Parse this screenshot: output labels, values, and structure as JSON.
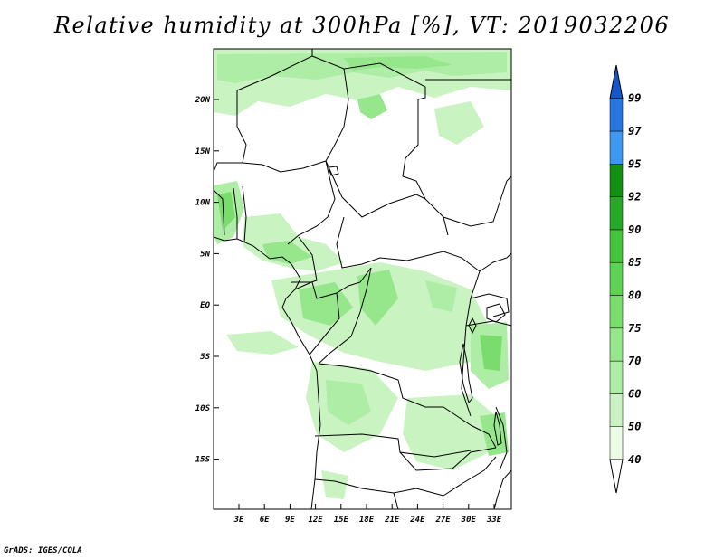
{
  "title": "Relative humidity at 300hPa [%], VT: 2019032206",
  "credit": "GrADS: IGES/COLA",
  "map": {
    "lon_labels": [
      "3E",
      "6E",
      "9E",
      "12E",
      "15E",
      "18E",
      "21E",
      "24E",
      "27E",
      "30E",
      "33E"
    ],
    "lat_labels": [
      "20N",
      "15N",
      "10N",
      "5N",
      "EQ",
      "5S",
      "10S",
      "15S"
    ]
  },
  "colorbar": {
    "levels": [
      "40",
      "50",
      "60",
      "70",
      "75",
      "80",
      "85",
      "90",
      "92",
      "95",
      "97",
      "99"
    ],
    "colors": [
      "#ebfbe6",
      "#c9f3c1",
      "#aeeda5",
      "#96e68c",
      "#7bdc6e",
      "#5fd256",
      "#43c43c",
      "#27a827",
      "#138f13",
      "#3f98f0",
      "#2a76e0",
      "#1656c8"
    ]
  }
}
